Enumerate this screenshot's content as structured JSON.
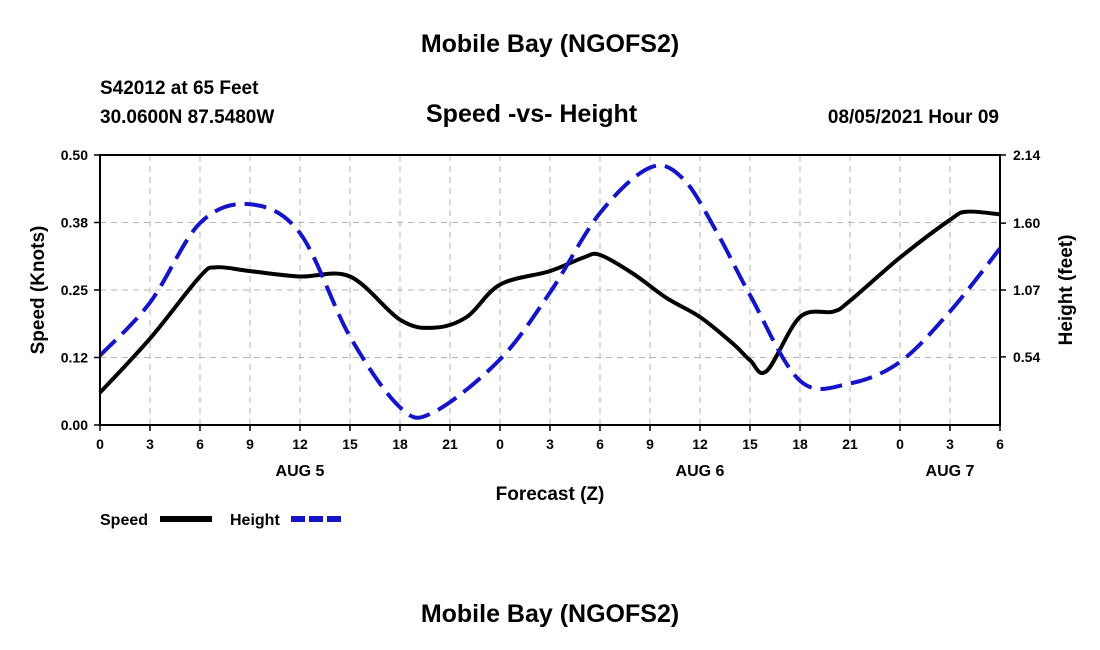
{
  "header": {
    "title": "Mobile Bay (NGOFS2)",
    "station": "S42012 at 65 Feet",
    "coords": "30.0600N  87.5480W",
    "subtitle": "Speed -vs- Height",
    "timestamp": "08/05/2021 Hour 09"
  },
  "footer": {
    "title": "Mobile Bay (NGOFS2)"
  },
  "legend": {
    "speed_label": "Speed",
    "height_label": "Height"
  },
  "colors": {
    "speed": "#000000",
    "height": "#1414c8",
    "grid": "#b4b4b4"
  },
  "chart_data": {
    "type": "line",
    "title": "Speed -vs- Height",
    "xlabel": "Forecast (Z)",
    "ylabel": "Speed (Knots)",
    "y2label": "Height (feet)",
    "xlim": [
      0,
      54
    ],
    "ylim": [
      0,
      0.5
    ],
    "y2lim": [
      0,
      2.14
    ],
    "x_ticks": [
      0,
      3,
      6,
      9,
      12,
      15,
      18,
      21,
      24,
      27,
      30,
      33,
      36,
      39,
      42,
      45,
      48,
      51,
      54
    ],
    "x_tick_labels": [
      "0",
      "3",
      "6",
      "9",
      "12",
      "15",
      "18",
      "21",
      "0",
      "3",
      "6",
      "9",
      "12",
      "15",
      "18",
      "21",
      "0",
      "3",
      "6"
    ],
    "y_ticks": [
      0.0,
      0.125,
      0.25,
      0.375,
      0.5
    ],
    "y_tick_labels": [
      "0.00",
      "0.12",
      "0.25",
      "0.38",
      "0.50"
    ],
    "y2_ticks": [
      0.54,
      1.07,
      1.6,
      2.14
    ],
    "y2_tick_labels": [
      "0.54",
      "1.07",
      "1.60",
      "2.14"
    ],
    "day_labels": [
      {
        "x": 12,
        "label": "AUG 5"
      },
      {
        "x": 36,
        "label": "AUG 6"
      },
      {
        "x": 51,
        "label": "AUG 7"
      }
    ],
    "grid": true,
    "series": [
      {
        "name": "Speed",
        "axis": "left",
        "x": [
          0,
          3,
          6,
          7,
          9,
          12,
          15,
          18,
          20,
          22,
          24,
          27,
          29,
          30,
          32,
          34,
          36,
          38,
          39,
          40,
          42,
          44,
          45,
          48,
          51,
          52,
          54
        ],
        "values": [
          0.06,
          0.16,
          0.275,
          0.292,
          0.285,
          0.275,
          0.275,
          0.195,
          0.18,
          0.2,
          0.26,
          0.285,
          0.31,
          0.315,
          0.28,
          0.235,
          0.2,
          0.15,
          0.12,
          0.1,
          0.2,
          0.21,
          0.23,
          0.31,
          0.38,
          0.395,
          0.39
        ]
      },
      {
        "name": "Height",
        "axis": "right",
        "x": [
          0,
          3,
          6,
          9,
          12,
          15,
          18,
          20,
          24,
          27,
          30,
          33,
          35,
          37,
          39,
          42,
          45,
          48,
          51,
          54
        ],
        "values": [
          0.55,
          0.97,
          1.6,
          1.75,
          1.52,
          0.7,
          0.14,
          0.1,
          0.52,
          1.05,
          1.68,
          2.04,
          1.95,
          1.53,
          1.03,
          0.35,
          0.33,
          0.5,
          0.9,
          1.4
        ]
      }
    ]
  }
}
